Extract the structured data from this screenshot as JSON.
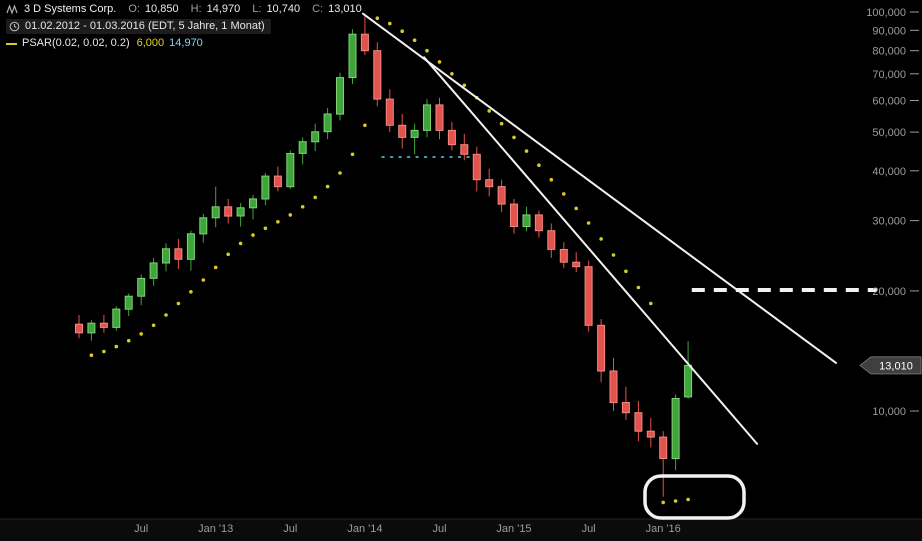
{
  "header": {
    "symbol": "3 D Systems Corp.",
    "ohlc": {
      "o": {
        "label": "O:",
        "value": "10,850"
      },
      "h": {
        "label": "H:",
        "value": "14,970"
      },
      "l": {
        "label": "L:",
        "value": "10,740"
      },
      "c": {
        "label": "C:",
        "value": "13,010"
      }
    },
    "range_line": "01.02.2012 - 01.03.2016 (EDT, 5 Jahre, 1 Monat)",
    "indicator": {
      "name": "PSAR(0.02, 0.02, 0.2)",
      "value1": "6,000",
      "value2": "14,970"
    }
  },
  "price_tag": {
    "text": "13,010",
    "value": 13010
  },
  "colors": {
    "up": "#3fa53a",
    "up_edge": "#7fd27a",
    "down": "#e2534d",
    "down_edge": "#f08a82",
    "psar": "#d9cb27",
    "line": "#f2f2f2",
    "axis_text": "#9c9c9c",
    "support_dotted": "#3f9fbf",
    "tag_bg": "#3f3f3f",
    "tag_border": "#6f6f6f",
    "tag_text": "#ffffff"
  },
  "chart_data": {
    "type": "candlestick",
    "symbol": "3 D Systems Corp.",
    "timeframe": "1 Monat",
    "period": "01.02.2012 - 01.03.2016",
    "scale": "logarithmic",
    "y_range": [
      5600,
      105000
    ],
    "candles": [
      [
        "Feb '12",
        16500,
        17400,
        15200,
        15700
      ],
      [
        "Mär '12",
        15700,
        16900,
        15000,
        16600
      ],
      [
        "Apr '12",
        16600,
        17400,
        15700,
        16200
      ],
      [
        "Mai '12",
        16200,
        18300,
        15900,
        18000
      ],
      [
        "Jun '12",
        18000,
        19700,
        17300,
        19400
      ],
      [
        "Jul '12",
        19400,
        22000,
        18400,
        21500
      ],
      [
        "Aug '12",
        21500,
        24200,
        20600,
        23500
      ],
      [
        "Sep '12",
        23500,
        26300,
        22400,
        25500
      ],
      [
        "Okt '12",
        25500,
        27000,
        22700,
        24000
      ],
      [
        "Nov '12",
        24000,
        28300,
        22500,
        27800
      ],
      [
        "Dez '12",
        27800,
        31200,
        26400,
        30500
      ],
      [
        "Jan '13",
        30500,
        36500,
        28900,
        32500
      ],
      [
        "Feb '13",
        32500,
        34000,
        29500,
        30800
      ],
      [
        "Mär '13",
        30800,
        33200,
        29000,
        32300
      ],
      [
        "Apr '13",
        32300,
        34800,
        30200,
        34000
      ],
      [
        "Mai '13",
        34000,
        39500,
        32800,
        38800
      ],
      [
        "Jun '13",
        38800,
        41000,
        35500,
        36500
      ],
      [
        "Jul '13",
        36500,
        45000,
        36000,
        44200
      ],
      [
        "Aug '13",
        44200,
        48500,
        41500,
        47300
      ],
      [
        "Sep '13",
        47300,
        52500,
        44800,
        50100
      ],
      [
        "Okt '13",
        50100,
        57500,
        48000,
        55500
      ],
      [
        "Nov '13",
        55500,
        70500,
        53500,
        68500
      ],
      [
        "Dez '13",
        68500,
        90500,
        66000,
        88000
      ],
      [
        "Jan '14",
        88000,
        97300,
        78000,
        80000
      ],
      [
        "Feb '14",
        80000,
        84000,
        58000,
        60500
      ],
      [
        "Mär '14",
        60500,
        64000,
        50000,
        52000
      ],
      [
        "Apr '14",
        52000,
        55500,
        45500,
        48500
      ],
      [
        "Mai '14",
        48500,
        52500,
        44000,
        50500
      ],
      [
        "Jun '14",
        50500,
        60500,
        48500,
        58500
      ],
      [
        "Jul '14",
        58500,
        61000,
        48000,
        50500
      ],
      [
        "Aug '14",
        50500,
        53000,
        45000,
        46500
      ],
      [
        "Sep '14",
        46500,
        49500,
        42500,
        44000
      ],
      [
        "Okt '14",
        44000,
        46000,
        35500,
        38000
      ],
      [
        "Nov '14",
        38000,
        40500,
        34500,
        36500
      ],
      [
        "Dez '14",
        36500,
        38000,
        31500,
        33000
      ],
      [
        "Jan '15",
        33000,
        34000,
        27800,
        29000
      ],
      [
        "Feb '15",
        29000,
        32500,
        28200,
        31000
      ],
      [
        "Mär '15",
        31000,
        31800,
        27200,
        28300
      ],
      [
        "Apr '15",
        28300,
        29500,
        24200,
        25400
      ],
      [
        "Mai '15",
        25400,
        26500,
        22800,
        23600
      ],
      [
        "Jun '15",
        23600,
        25000,
        22300,
        23000
      ],
      [
        "Jul '15",
        23000,
        23800,
        15800,
        16400
      ],
      [
        "Aug '15",
        16400,
        17000,
        11800,
        12600
      ],
      [
        "Sep '15",
        12600,
        13600,
        10000,
        10500
      ],
      [
        "Okt '15",
        10500,
        11500,
        9500,
        9900
      ],
      [
        "Nov '15",
        9900,
        10600,
        8400,
        8900
      ],
      [
        "Dez '15",
        8900,
        9600,
        8100,
        8600
      ],
      [
        "Jan '16",
        8600,
        8900,
        6100,
        7600
      ],
      [
        "Feb '16",
        7600,
        11000,
        7100,
        10750
      ],
      [
        "Mär '16",
        10850,
        14970,
        10740,
        13010
      ]
    ],
    "psar": {
      "params": [
        0.02,
        0.02,
        0.2
      ],
      "current_value": 6000,
      "dots": [
        [
          1,
          13800
        ],
        [
          2,
          14100
        ],
        [
          3,
          14500
        ],
        [
          4,
          15000
        ],
        [
          5,
          15600
        ],
        [
          6,
          16400
        ],
        [
          7,
          17400
        ],
        [
          8,
          18600
        ],
        [
          9,
          19900
        ],
        [
          10,
          21300
        ],
        [
          11,
          22900
        ],
        [
          12,
          24700
        ],
        [
          13,
          26300
        ],
        [
          14,
          27600
        ],
        [
          15,
          28700
        ],
        [
          16,
          29800
        ],
        [
          17,
          31000
        ],
        [
          18,
          32500
        ],
        [
          19,
          34300
        ],
        [
          20,
          36500
        ],
        [
          21,
          39500
        ],
        [
          22,
          44000
        ],
        [
          23,
          52000
        ],
        [
          24,
          96500
        ],
        [
          25,
          93500
        ],
        [
          26,
          89500
        ],
        [
          27,
          85000
        ],
        [
          28,
          80000
        ],
        [
          29,
          75000
        ],
        [
          30,
          70000
        ],
        [
          31,
          65500
        ],
        [
          32,
          61000
        ],
        [
          33,
          56500
        ],
        [
          34,
          52500
        ],
        [
          35,
          48500
        ],
        [
          36,
          44800
        ],
        [
          37,
          41300
        ],
        [
          38,
          38000
        ],
        [
          39,
          35000
        ],
        [
          40,
          32200
        ],
        [
          41,
          29600
        ],
        [
          42,
          27000
        ],
        [
          43,
          24600
        ],
        [
          44,
          22400
        ],
        [
          45,
          20400
        ],
        [
          46,
          18600
        ],
        [
          47,
          5900
        ],
        [
          48,
          5950
        ],
        [
          49,
          6000
        ]
      ]
    },
    "y_axis": {
      "ticks": [
        {
          "value": 100000,
          "label": "100,000"
        },
        {
          "value": 90000,
          "label": "90,000"
        },
        {
          "value": 80000,
          "label": "80,000"
        },
        {
          "value": 70000,
          "label": "70,000"
        },
        {
          "value": 60000,
          "label": "60,000"
        },
        {
          "value": 50000,
          "label": "50,000"
        },
        {
          "value": 40000,
          "label": "40,000"
        },
        {
          "value": 30000,
          "label": "30,000"
        },
        {
          "value": 20000,
          "label": "20,000"
        },
        {
          "value": 10000,
          "label": "10,000"
        }
      ]
    },
    "x_axis": {
      "ticks": [
        {
          "i": 5,
          "label": "Jul"
        },
        {
          "i": 11,
          "label": "Jan '13"
        },
        {
          "i": 17,
          "label": "Jul"
        },
        {
          "i": 23,
          "label": "Jan '14"
        },
        {
          "i": 29,
          "label": "Jul"
        },
        {
          "i": 35,
          "label": "Jan '15"
        },
        {
          "i": 41,
          "label": "Jul"
        },
        {
          "i": 47,
          "label": "Jan '16"
        }
      ]
    },
    "trend_lines": [
      {
        "i1": 22.85,
        "v1": 99000,
        "i2": 60.9,
        "v2": 13200
      },
      {
        "i1": 27.76,
        "v1": 77000,
        "i2": 54.55,
        "v2": 8270
      }
    ],
    "dashed_level": {
      "value": 20100,
      "i1": 49.3,
      "i2": 64.2
    },
    "support_dotted": {
      "value": 43300,
      "i1": 24.4,
      "i2": 31.5
    },
    "highlight_oval": {
      "x": 645,
      "y": 476,
      "w": 99,
      "h": 42
    }
  }
}
